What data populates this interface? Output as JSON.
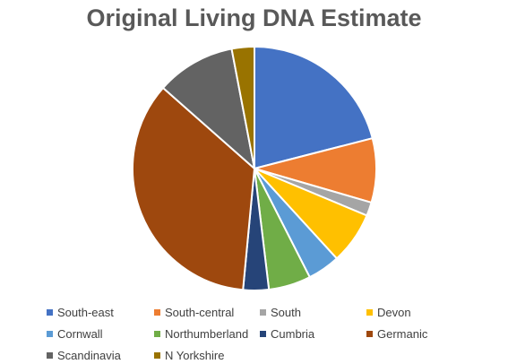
{
  "chart_data": {
    "type": "pie",
    "title": "Original Living DNA Estimate",
    "legend_position": "bottom",
    "slices": [
      {
        "label": "South-east",
        "value": 21.0,
        "color": "#4472C4"
      },
      {
        "label": "South-central",
        "value": 8.5,
        "color": "#ED7D31"
      },
      {
        "label": "South",
        "value": 1.8,
        "color": "#A5A5A5"
      },
      {
        "label": "Devon",
        "value": 6.9,
        "color": "#FFC000"
      },
      {
        "label": "Cornwall",
        "value": 4.3,
        "color": "#5B9BD5"
      },
      {
        "label": "Northumberland",
        "value": 5.6,
        "color": "#70AD47"
      },
      {
        "label": "Cumbria",
        "value": 3.4,
        "color": "#264478"
      },
      {
        "label": "Germanic",
        "value": 35.0,
        "color": "#9E480E"
      },
      {
        "label": "Scandinavia",
        "value": 10.5,
        "color": "#636363"
      },
      {
        "label": "N Yorkshire",
        "value": 3.0,
        "color": "#997300"
      }
    ]
  }
}
